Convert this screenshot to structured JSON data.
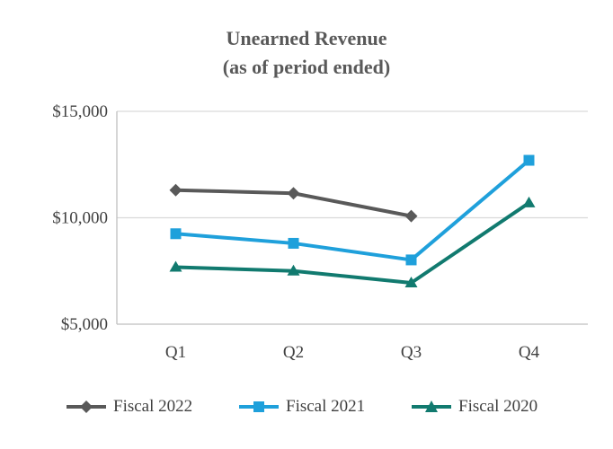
{
  "chart_data": {
    "type": "line",
    "title": "Unearned Revenue",
    "subtitle": "(as of period ended)",
    "categories": [
      "Q1",
      "Q2",
      "Q3",
      "Q4"
    ],
    "y_tick_labels": [
      "$15,000",
      "$10,000",
      "$5,000"
    ],
    "y_ticks": [
      15000,
      10000,
      5000
    ],
    "ylim": [
      5000,
      15000
    ],
    "grid": true,
    "legend_position": "bottom",
    "series": [
      {
        "name": "Fiscal 2022",
        "color": "#595959",
        "marker": "diamond",
        "values": [
          11300,
          11150,
          10080,
          null
        ]
      },
      {
        "name": "Fiscal 2021",
        "color": "#1fa0db",
        "marker": "square",
        "values": [
          9250,
          8800,
          8020,
          12700
        ]
      },
      {
        "name": "Fiscal 2020",
        "color": "#117a6f",
        "marker": "triangle",
        "values": [
          7680,
          7500,
          6940,
          10700
        ]
      }
    ]
  }
}
